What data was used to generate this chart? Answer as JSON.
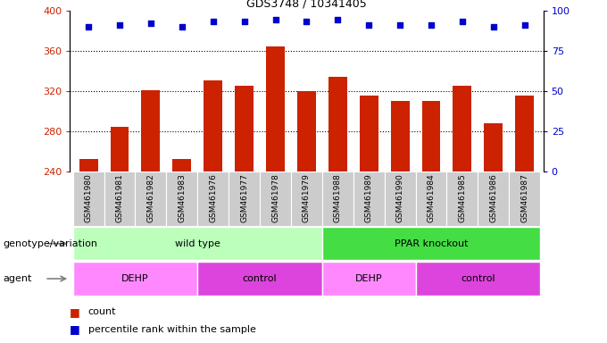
{
  "title": "GDS3748 / 10341405",
  "samples": [
    "GSM461980",
    "GSM461981",
    "GSM461982",
    "GSM461983",
    "GSM461976",
    "GSM461977",
    "GSM461978",
    "GSM461979",
    "GSM461988",
    "GSM461989",
    "GSM461990",
    "GSM461984",
    "GSM461985",
    "GSM461986",
    "GSM461987"
  ],
  "counts": [
    252,
    284,
    321,
    252,
    330,
    325,
    364,
    320,
    334,
    315,
    310,
    310,
    325,
    288,
    315
  ],
  "percentile_ranks": [
    90,
    91,
    92,
    90,
    93,
    93,
    94,
    93,
    94,
    91,
    91,
    91,
    93,
    90,
    91
  ],
  "ylim_left": [
    240,
    400
  ],
  "ylim_right": [
    0,
    100
  ],
  "yticks_left": [
    240,
    280,
    320,
    360,
    400
  ],
  "yticks_right": [
    0,
    25,
    50,
    75,
    100
  ],
  "bar_color": "#cc2200",
  "dot_color": "#0000cc",
  "groups": [
    {
      "label": "wild type",
      "start": 0,
      "end": 7,
      "color": "#bbffbb"
    },
    {
      "label": "PPAR knockout",
      "start": 8,
      "end": 14,
      "color": "#44dd44"
    }
  ],
  "agents": [
    {
      "label": "DEHP",
      "start": 0,
      "end": 3,
      "color": "#ff88ff"
    },
    {
      "label": "control",
      "start": 4,
      "end": 7,
      "color": "#dd44dd"
    },
    {
      "label": "DEHP",
      "start": 8,
      "end": 10,
      "color": "#ff88ff"
    },
    {
      "label": "control",
      "start": 11,
      "end": 14,
      "color": "#dd44dd"
    }
  ],
  "legend_count_color": "#cc2200",
  "legend_pct_color": "#0000cc",
  "xlabel_genotype": "genotype/variation",
  "xlabel_agent": "agent",
  "tick_area_color": "#cccccc",
  "grid_dotted_values": [
    280,
    320,
    360
  ],
  "bar_width": 0.6
}
